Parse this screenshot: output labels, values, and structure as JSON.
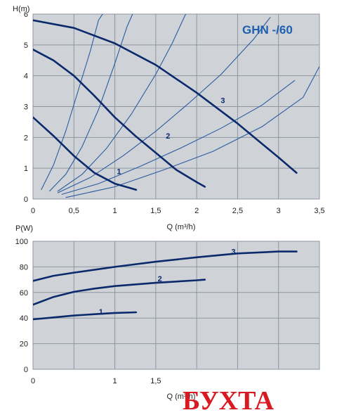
{
  "colors": {
    "plot_bg": "#cfd3d8",
    "grid": "#8d96a0",
    "curve": "#0b2a6b",
    "system_curve": "#2a5b9e",
    "title": "#1f5fb0",
    "watermark": "#d81a22"
  },
  "watermark": {
    "text": "БУХТА"
  },
  "chart_data": [
    {
      "type": "line",
      "title": "GHN -/60",
      "xlabel": "Q (m³/h)",
      "ylabel": "H(m)",
      "xlim": [
        0,
        3.5
      ],
      "ylim": [
        0,
        6
      ],
      "x_ticks": [
        "0",
        "0,5",
        "1",
        "1,5",
        "2",
        "2,5",
        "3",
        "3,5"
      ],
      "y_ticks": [
        "0",
        "1",
        "2",
        "3",
        "4",
        "5",
        "6"
      ],
      "grid": true,
      "series": [
        {
          "name": "1",
          "x": [
            0,
            0.25,
            0.5,
            0.75,
            1.0,
            1.2,
            1.26
          ],
          "y": [
            2.65,
            2.05,
            1.4,
            0.85,
            0.5,
            0.35,
            0.3
          ]
        },
        {
          "name": "2",
          "x": [
            0,
            0.25,
            0.5,
            0.75,
            1.0,
            1.25,
            1.5,
            1.75,
            2.0,
            2.1
          ],
          "y": [
            4.85,
            4.5,
            4.0,
            3.35,
            2.65,
            2.05,
            1.5,
            0.95,
            0.55,
            0.4
          ]
        },
        {
          "name": "3",
          "x": [
            0,
            0.5,
            1.0,
            1.5,
            2.0,
            2.5,
            3.0,
            3.22
          ],
          "y": [
            5.8,
            5.55,
            5.05,
            4.35,
            3.45,
            2.45,
            1.35,
            0.85
          ]
        }
      ],
      "system_curves": [
        {
          "x": [
            0.1,
            0.25,
            0.4,
            0.55,
            0.7,
            0.8,
            0.9
          ],
          "y": [
            0.3,
            1.1,
            2.2,
            3.5,
            4.8,
            5.8,
            6.2
          ]
        },
        {
          "x": [
            0.2,
            0.4,
            0.6,
            0.8,
            1.0,
            1.15,
            1.25
          ],
          "y": [
            0.25,
            0.8,
            1.7,
            2.9,
            4.4,
            5.6,
            6.2
          ]
        },
        {
          "x": [
            0.3,
            0.6,
            0.9,
            1.2,
            1.5,
            1.7,
            1.9
          ],
          "y": [
            0.25,
            0.8,
            1.65,
            2.75,
            4.05,
            5.05,
            6.2
          ]
        },
        {
          "x": [
            0.3,
            0.7,
            1.1,
            1.5,
            1.9,
            2.3,
            2.7,
            2.9
          ],
          "y": [
            0.2,
            0.7,
            1.4,
            2.2,
            3.1,
            4.05,
            5.2,
            5.9
          ]
        },
        {
          "x": [
            0.35,
            0.8,
            1.3,
            1.8,
            2.3,
            2.8,
            3.2
          ],
          "y": [
            0.15,
            0.5,
            1.05,
            1.65,
            2.3,
            3.05,
            3.85
          ]
        },
        {
          "x": [
            0.4,
            1.0,
            1.6,
            2.2,
            2.8,
            3.3,
            3.5
          ],
          "y": [
            0.05,
            0.4,
            0.95,
            1.55,
            2.35,
            3.3,
            4.3
          ]
        }
      ],
      "curve_labels": [
        {
          "text": "1",
          "x": 1.05,
          "y": 0.9
        },
        {
          "text": "2",
          "x": 1.65,
          "y": 2.05
        },
        {
          "text": "3",
          "x": 2.32,
          "y": 3.2
        }
      ]
    },
    {
      "type": "line",
      "title": "",
      "xlabel": "Q (m³/h)",
      "ylabel": "P(W)",
      "xlim": [
        0,
        3.5
      ],
      "ylim": [
        0,
        100
      ],
      "x_ticks": [
        "0",
        "1",
        "1,5"
      ],
      "x_tick_values": [
        0,
        1.0,
        1.5
      ],
      "grid_x": [
        0,
        0.5,
        1.0,
        1.5,
        2.0,
        2.5,
        3.0,
        3.5
      ],
      "y_ticks": [
        "0",
        "20",
        "40",
        "60",
        "80",
        "100"
      ],
      "grid": true,
      "series": [
        {
          "name": "1",
          "x": [
            0,
            0.25,
            0.5,
            0.75,
            1.0,
            1.26
          ],
          "y": [
            39,
            40.5,
            42,
            43,
            44,
            44.5
          ]
        },
        {
          "name": "2",
          "x": [
            0,
            0.25,
            0.5,
            0.75,
            1.0,
            1.5,
            2.0,
            2.1
          ],
          "y": [
            50.5,
            56.5,
            60.5,
            63,
            65,
            67.5,
            69.5,
            70
          ]
        },
        {
          "name": "3",
          "x": [
            0,
            0.25,
            0.5,
            1.0,
            1.5,
            2.0,
            2.5,
            3.0,
            3.22
          ],
          "y": [
            69,
            73,
            75.5,
            80,
            84,
            87.5,
            90.5,
            92,
            92
          ]
        }
      ],
      "curve_labels": [
        {
          "text": "1",
          "x": 0.83,
          "y": 45
        },
        {
          "text": "2",
          "x": 1.55,
          "y": 71
        },
        {
          "text": "3",
          "x": 2.45,
          "y": 92
        }
      ]
    }
  ]
}
